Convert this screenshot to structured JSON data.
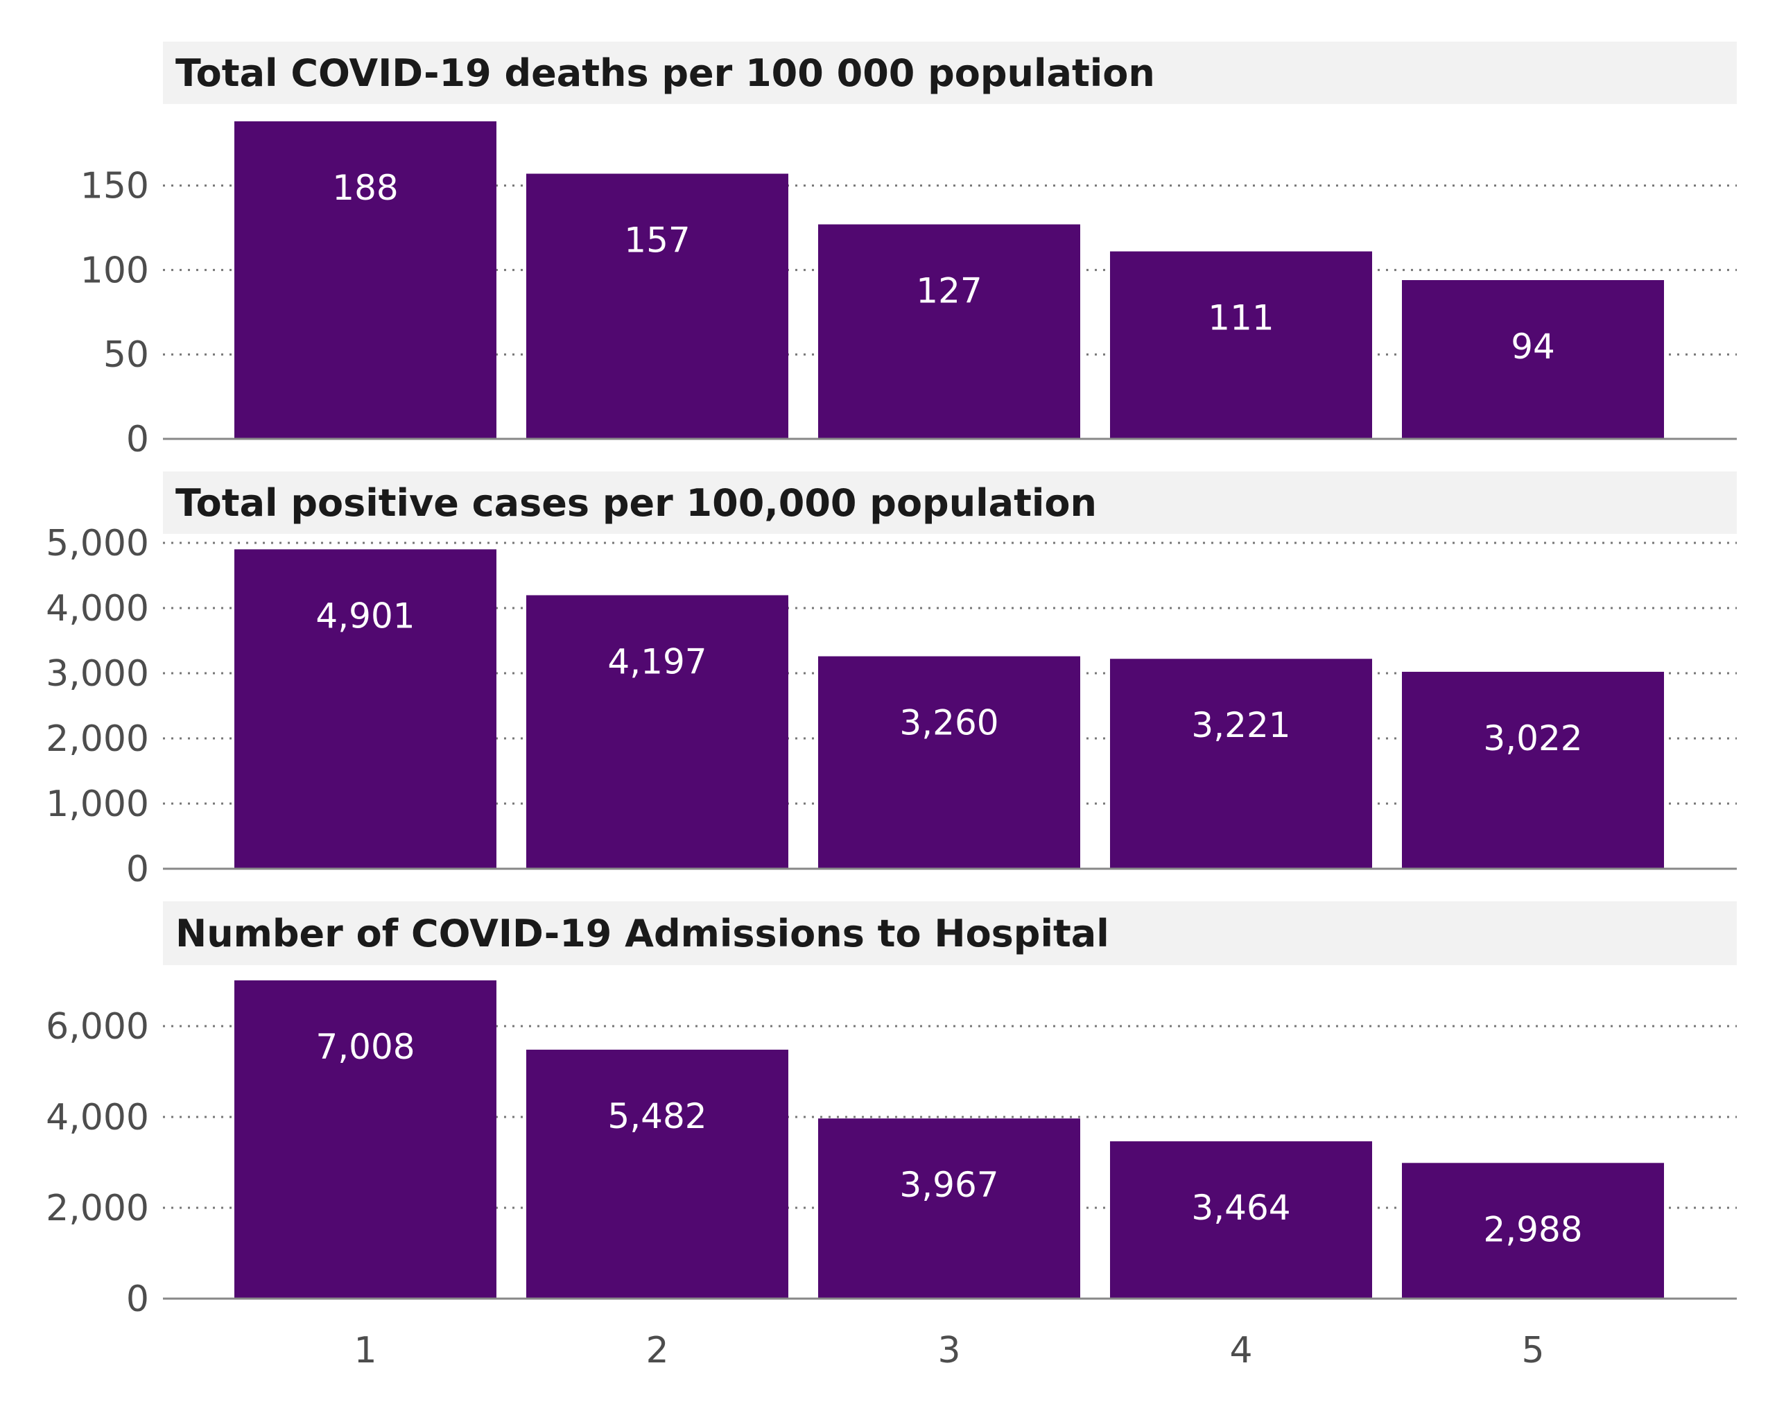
{
  "colors": {
    "bar": "#510870",
    "strip": "#f2f2f2",
    "title_text": "#1a1a1a",
    "tick_text": "#4d4d4d",
    "label_text": "#ffffff",
    "grid": "#777777"
  },
  "chart_data": [
    {
      "type": "bar",
      "title": "Total COVID-19 deaths per 100 000 population",
      "categories": [
        "1",
        "2",
        "3",
        "4",
        "5"
      ],
      "values": [
        188,
        157,
        127,
        111,
        94
      ],
      "value_labels": [
        "188",
        "157",
        "127",
        "111",
        "94"
      ],
      "ylim": [
        0,
        188
      ],
      "yticks": [
        0,
        50,
        100,
        150
      ],
      "ytick_labels": [
        "0",
        "50",
        "100",
        "150"
      ],
      "grid": true,
      "legend": "none"
    },
    {
      "type": "bar",
      "title": "Total positive cases per 100,000 population",
      "categories": [
        "1",
        "2",
        "3",
        "4",
        "5"
      ],
      "values": [
        4901,
        4197,
        3260,
        3221,
        3022
      ],
      "value_labels": [
        "4,901",
        "4,197",
        "3,260",
        "3,221",
        "3,022"
      ],
      "ylim": [
        0,
        5000
      ],
      "yticks": [
        0,
        1000,
        2000,
        3000,
        4000,
        5000
      ],
      "ytick_labels": [
        "0",
        "1,000",
        "2,000",
        "3,000",
        "4,000",
        "5,000"
      ],
      "grid": true,
      "legend": "none"
    },
    {
      "type": "bar",
      "title": "Number of COVID-19 Admissions to Hospital",
      "categories": [
        "1",
        "2",
        "3",
        "4",
        "5"
      ],
      "values": [
        7008,
        5482,
        3967,
        3464,
        2988
      ],
      "value_labels": [
        "7,008",
        "5,482",
        "3,967",
        "3,464",
        "2,988"
      ],
      "ylim": [
        0,
        7008
      ],
      "yticks": [
        0,
        2000,
        4000,
        6000
      ],
      "ytick_labels": [
        "0",
        "2,000",
        "4,000",
        "6,000"
      ],
      "grid": true,
      "legend": "none"
    }
  ],
  "x_tick_labels": [
    "1",
    "2",
    "3",
    "4",
    "5"
  ]
}
